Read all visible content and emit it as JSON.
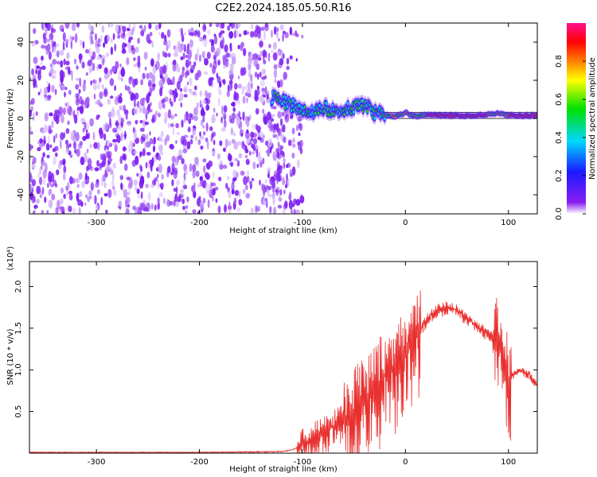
{
  "figure_title": "C2E2.2024.185.05.50.R16",
  "chart_data": [
    {
      "type": "heatmap",
      "title": "C2E2.2024.185.05.50.R16",
      "xlabel": "Height of straight line (km)",
      "ylabel": "Frequency (Hz)",
      "xlim": [
        -365,
        128
      ],
      "ylim": [
        -50,
        50
      ],
      "x_ticks": [
        -300,
        -200,
        -100,
        0,
        100
      ],
      "y_ticks": [
        -40,
        -20,
        0,
        20,
        40
      ],
      "x_tick_labels": [
        "-300",
        "-200",
        "-100",
        "0",
        "100"
      ],
      "y_tick_labels": [
        "-40",
        "-20",
        "0",
        "20",
        "40"
      ],
      "noise_region": {
        "x_range": [
          -365,
          -112
        ],
        "y_range": [
          -50,
          50
        ],
        "color": "#7a1cf0"
      },
      "signal_ridge": {
        "x": [
          -130,
          -120,
          -110,
          -100,
          -90,
          -80,
          -70,
          -60,
          -50,
          -40,
          -30,
          -20,
          -10,
          0,
          10,
          20,
          40,
          60,
          80,
          90,
          100,
          128
        ],
        "y": [
          11,
          9,
          7,
          5,
          3,
          6,
          4,
          5,
          6,
          7,
          3,
          2,
          1,
          3,
          1,
          2,
          1.5,
          1.5,
          2,
          3,
          1.5,
          1.5
        ]
      },
      "colorbar": {
        "label": "Normalized spectral amplitude",
        "range": [
          0,
          1
        ],
        "ticks": [
          0.0,
          0.2,
          0.4,
          0.6,
          0.8
        ],
        "tick_labels": [
          "0.0",
          "0.2",
          "0.4",
          "0.6",
          "0.8"
        ],
        "colors": [
          "#ffffff",
          "#8a1cf0",
          "#1a1aff",
          "#00d8ff",
          "#00e000",
          "#ffff00",
          "#ff8000",
          "#ff0000",
          "#ff1090"
        ]
      }
    },
    {
      "type": "line",
      "xlabel": "Height of straight line (km)",
      "ylabel": "SNR (10 * v/v)",
      "y_scale_label": "(x10⁴)",
      "xlim": [
        -365,
        128
      ],
      "ylim": [
        0,
        2.3
      ],
      "x_ticks": [
        -300,
        -200,
        -100,
        0,
        100
      ],
      "y_ticks": [
        0.5,
        1.0,
        1.5,
        2.0
      ],
      "x_tick_labels": [
        "-300",
        "-200",
        "-100",
        "0",
        "100"
      ],
      "y_tick_labels": [
        "0.5",
        "1.0",
        "1.5",
        "2.0"
      ],
      "series": [
        {
          "name": "SNR",
          "color": "#e8302e",
          "x": [
            -365,
            -300,
            -200,
            -120,
            -110,
            -100,
            -90,
            -80,
            -70,
            -60,
            -50,
            -40,
            -30,
            -20,
            -10,
            0,
            10,
            20,
            30,
            40,
            50,
            60,
            70,
            80,
            90,
            95,
            100,
            110,
            120,
            128
          ],
          "y": [
            0.01,
            0.01,
            0.01,
            0.02,
            0.04,
            0.1,
            0.18,
            0.25,
            0.32,
            0.42,
            0.5,
            0.65,
            0.8,
            0.95,
            1.05,
            1.2,
            1.4,
            1.6,
            1.72,
            1.76,
            1.72,
            1.62,
            1.52,
            1.45,
            1.38,
            1.3,
            0.9,
            1.0,
            0.95,
            0.8
          ]
        }
      ],
      "noise_amplitude": [
        {
          "x_from": -365,
          "x_to": -105,
          "amp": 0.01
        },
        {
          "x_from": -105,
          "x_to": -60,
          "amp": 0.35
        },
        {
          "x_from": -60,
          "x_to": 15,
          "amp": 0.95
        },
        {
          "x_from": 15,
          "x_to": 85,
          "amp": 0.12
        },
        {
          "x_from": 85,
          "x_to": 103,
          "amp": 0.9
        },
        {
          "x_from": 103,
          "x_to": 128,
          "amp": 0.08
        }
      ]
    }
  ]
}
